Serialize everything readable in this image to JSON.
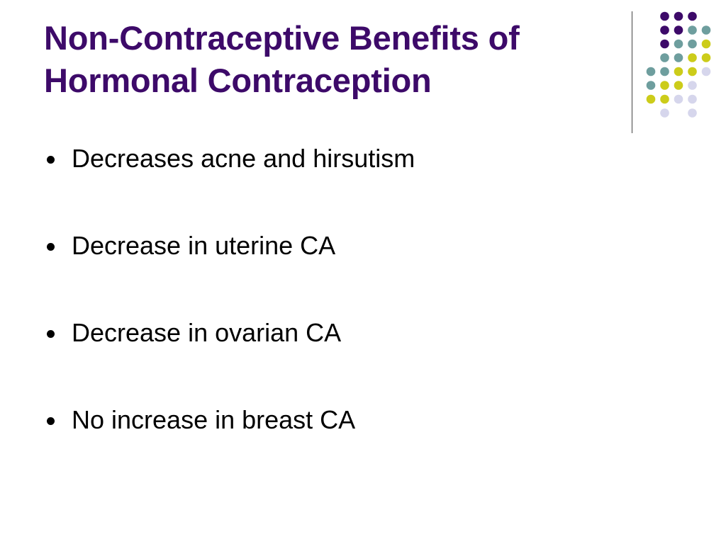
{
  "slide": {
    "title_lines": [
      "Non-Contraceptive Benefits of",
      "Hormonal Contraception"
    ],
    "bullets": [
      "Decreases acne and hirsutism",
      "Decrease in uterine CA",
      "Decrease in ovarian CA",
      "No increase in breast CA"
    ]
  },
  "colors": {
    "title": "#3d0a69",
    "dot_purple": "#3d0a69",
    "dot_teal": "#6e9e9e",
    "dot_yellow": "#cccc1a",
    "dot_lavender": "#d6d6ec"
  },
  "decoration": {
    "icon": "dot-grid-decoration",
    "grid": [
      [
        "",
        "dot_purple",
        "dot_purple",
        "dot_purple",
        ""
      ],
      [
        "",
        "dot_purple",
        "dot_purple",
        "dot_teal",
        "dot_teal"
      ],
      [
        "",
        "dot_purple",
        "dot_teal",
        "dot_teal",
        "dot_yellow"
      ],
      [
        "",
        "dot_teal",
        "dot_teal",
        "dot_yellow",
        "dot_yellow"
      ],
      [
        "dot_teal",
        "dot_teal",
        "dot_yellow",
        "dot_yellow",
        "dot_lavender"
      ],
      [
        "dot_teal",
        "dot_yellow",
        "dot_yellow",
        "dot_lavender",
        ""
      ],
      [
        "dot_yellow",
        "dot_yellow",
        "dot_lavender",
        "dot_lavender",
        ""
      ],
      [
        "",
        "dot_lavender",
        "",
        "dot_lavender",
        ""
      ]
    ]
  }
}
